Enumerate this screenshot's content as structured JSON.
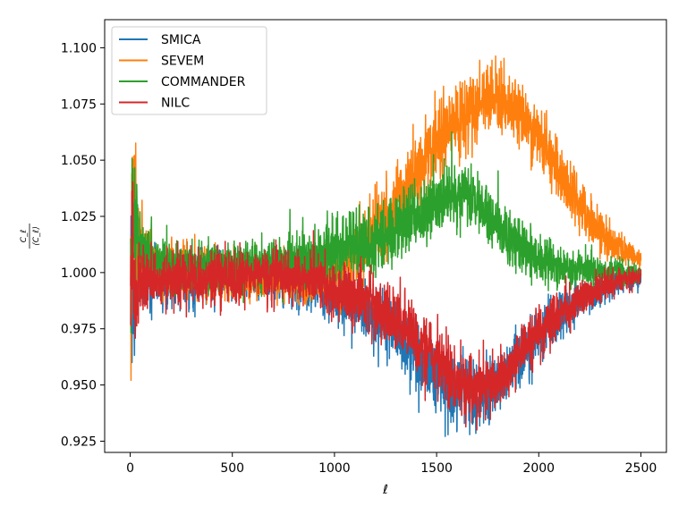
{
  "chart_data": {
    "type": "line",
    "title": "",
    "xlabel": "ℓ",
    "ylabel": "C_ℓ / ⟨C_ℓ⟩",
    "ylabel_num": "C_ℓ",
    "ylabel_den": "⟨C_ℓ⟩",
    "xlim": [
      -125,
      2625
    ],
    "ylim": [
      0.92,
      1.1125
    ],
    "xticks": [
      0,
      500,
      1000,
      1500,
      2000,
      2500
    ],
    "xtick_labels": [
      "0",
      "500",
      "1000",
      "1500",
      "2000",
      "2500"
    ],
    "yticks": [
      0.925,
      0.95,
      0.975,
      1.0,
      1.025,
      1.05,
      1.075,
      1.1
    ],
    "ytick_labels": [
      "0.925",
      "0.950",
      "0.975",
      "1.000",
      "1.025",
      "1.050",
      "1.075",
      "1.100"
    ],
    "grid": false,
    "legend_position": "top-left",
    "series": [
      {
        "name": "SMICA",
        "color": "#1f77b4",
        "noise": [
          [
            2,
            0.02
          ],
          [
            50,
            0.008
          ],
          [
            150,
            0.006
          ],
          [
            600,
            0.005
          ],
          [
            1500,
            0.008
          ],
          [
            2000,
            0.006
          ],
          [
            2500,
            0.002
          ]
        ],
        "x": [
          2,
          10,
          20,
          40,
          80,
          150,
          300,
          500,
          700,
          900,
          1000,
          1100,
          1200,
          1300,
          1400,
          1500,
          1600,
          1700,
          1800,
          1900,
          2000,
          2100,
          2200,
          2300,
          2400,
          2500
        ],
        "values": [
          0.99,
          0.985,
          0.99,
          0.995,
          0.998,
          0.998,
          0.998,
          0.998,
          0.998,
          0.995,
          0.99,
          0.985,
          0.98,
          0.975,
          0.965,
          0.955,
          0.948,
          0.945,
          0.952,
          0.962,
          0.972,
          0.98,
          0.987,
          0.992,
          0.996,
          0.998
        ]
      },
      {
        "name": "SEVEM",
        "color": "#ff7f0e",
        "noise": [
          [
            2,
            0.025
          ],
          [
            50,
            0.008
          ],
          [
            150,
            0.006
          ],
          [
            600,
            0.005
          ],
          [
            1300,
            0.008
          ],
          [
            1800,
            0.008
          ],
          [
            2200,
            0.006
          ],
          [
            2500,
            0.002
          ]
        ],
        "x": [
          2,
          10,
          20,
          40,
          80,
          150,
          300,
          500,
          700,
          900,
          1000,
          1100,
          1200,
          1300,
          1400,
          1500,
          1600,
          1700,
          1800,
          1900,
          2000,
          2100,
          2200,
          2300,
          2400,
          2500
        ],
        "values": [
          0.99,
          1.02,
          1.03,
          1.01,
          1.005,
          1.002,
          1.0,
          0.998,
          0.997,
          0.998,
          1.0,
          1.008,
          1.02,
          1.032,
          1.045,
          1.058,
          1.068,
          1.075,
          1.077,
          1.072,
          1.06,
          1.045,
          1.03,
          1.018,
          1.01,
          1.006
        ]
      },
      {
        "name": "COMMANDER",
        "color": "#2ca02c",
        "noise": [
          [
            2,
            0.02
          ],
          [
            50,
            0.008
          ],
          [
            150,
            0.006
          ],
          [
            600,
            0.005
          ],
          [
            1200,
            0.008
          ],
          [
            1700,
            0.007
          ],
          [
            2100,
            0.005
          ],
          [
            2500,
            0.002
          ]
        ],
        "x": [
          2,
          10,
          20,
          40,
          80,
          150,
          300,
          500,
          700,
          900,
          1000,
          1100,
          1200,
          1300,
          1400,
          1500,
          1600,
          1700,
          1800,
          1900,
          2000,
          2100,
          2200,
          2300,
          2400,
          2500
        ],
        "values": [
          1.0,
          1.03,
          1.02,
          1.01,
          1.005,
          1.003,
          1.002,
          1.003,
          1.004,
          1.006,
          1.01,
          1.012,
          1.015,
          1.018,
          1.025,
          1.032,
          1.035,
          1.03,
          1.02,
          1.012,
          1.006,
          1.003,
          1.002,
          1.0,
          1.0,
          0.999
        ]
      },
      {
        "name": "NILC",
        "color": "#d62728",
        "noise": [
          [
            2,
            0.02
          ],
          [
            50,
            0.008
          ],
          [
            150,
            0.006
          ],
          [
            600,
            0.005
          ],
          [
            1500,
            0.008
          ],
          [
            2000,
            0.006
          ],
          [
            2500,
            0.002
          ]
        ],
        "x": [
          2,
          10,
          20,
          40,
          80,
          150,
          300,
          500,
          700,
          900,
          1000,
          1100,
          1200,
          1300,
          1400,
          1500,
          1600,
          1700,
          1800,
          1900,
          2000,
          2100,
          2200,
          2300,
          2400,
          2500
        ],
        "values": [
          0.99,
          1.0,
          0.985,
          0.995,
          0.997,
          0.997,
          0.997,
          0.998,
          0.999,
          0.997,
          0.993,
          0.988,
          0.983,
          0.978,
          0.97,
          0.96,
          0.952,
          0.948,
          0.953,
          0.963,
          0.973,
          0.981,
          0.988,
          0.993,
          0.996,
          0.998
        ]
      }
    ]
  }
}
